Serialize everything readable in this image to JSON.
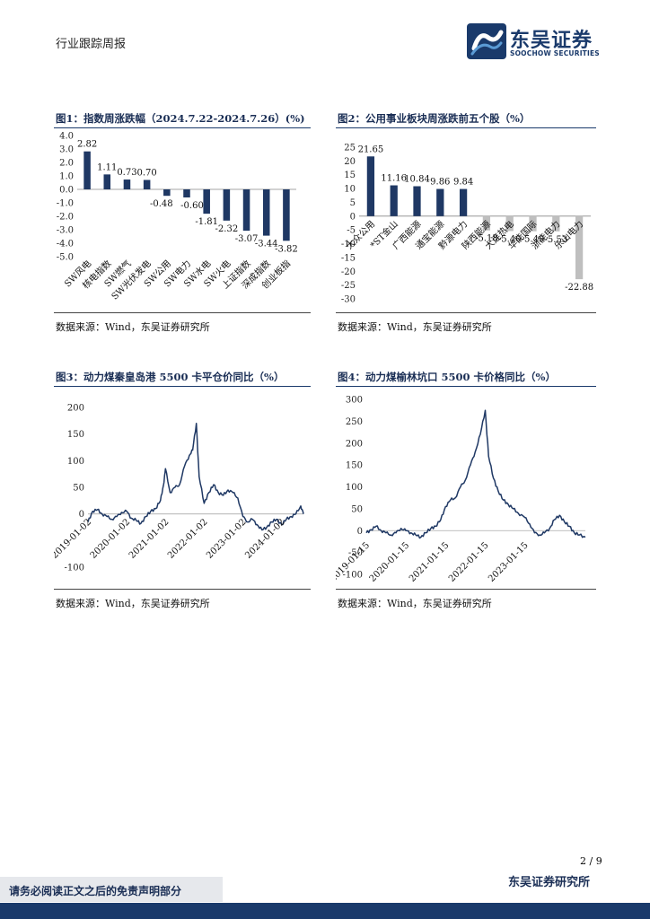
{
  "header": {
    "title": "行业跟踪周报"
  },
  "logo": {
    "cn": "东吴证券",
    "en": "SOOCHOW SECURITIES"
  },
  "figures": [
    {
      "title": "图1：指数周涨跌幅（2024.7.22-2024.7.26）(%)",
      "source": "数据来源：Wind，东吴证券研究所"
    },
    {
      "title": "图2：公用事业板块周涨跌前五个股（%）",
      "source": "数据来源：Wind，东吴证券研究所"
    },
    {
      "title": "图3：动力煤秦皇岛港 5500 卡平仓价同比（%）",
      "source": "数据来源：Wind，东吴证券研究所"
    },
    {
      "title": "图4：动力煤榆林坑口 5500 卡价格同比（%）",
      "source": "数据来源：Wind，东吴证券研究所"
    }
  ],
  "chart_data": [
    {
      "type": "bar",
      "categories": [
        "SW风电",
        "核电指数",
        "SW燃气",
        "SW光伏发电",
        "SW公用",
        "SW电力",
        "SW水电",
        "SW火电",
        "上证指数",
        "深成指数",
        "创业板指"
      ],
      "values": [
        2.82,
        1.11,
        0.73,
        0.7,
        -0.48,
        -0.6,
        -1.81,
        -2.32,
        -3.07,
        -3.44,
        -3.82
      ],
      "value_labels": [
        "2.82",
        "1.11",
        "0.73",
        "0.70",
        "-0.48",
        "-0.60",
        "-1.81",
        "-2.32",
        "-3.07",
        "-3.44",
        "-3.82"
      ],
      "ylim": [
        -5,
        4
      ],
      "yticks": [
        "4.0",
        "3.0",
        "2.0",
        "1.0",
        "0.0",
        "-1.0",
        "-2.0",
        "-3.0",
        "-4.0",
        "-5.0"
      ],
      "colors": [
        "#1f3864",
        "#1f3864",
        "#1f3864",
        "#1f3864",
        "#1f3864",
        "#1f3864",
        "#1f3864",
        "#1f3864",
        "#1f3864",
        "#1f3864",
        "#1f3864"
      ],
      "grid": false
    },
    {
      "type": "bar",
      "categories": [
        "大众公用",
        "*ST金山",
        "广西能源",
        "通宝能源",
        "黔源电力",
        "陕西能源",
        "大连热电",
        "华能国际",
        "浙能电力",
        "乐山电力"
      ],
      "values": [
        21.65,
        11.16,
        10.84,
        9.86,
        9.84,
        -5.18,
        -5.4,
        -5.49,
        -5.53,
        -22.88
      ],
      "value_labels": [
        "21.65",
        "11.16",
        "10.84",
        "9.86",
        "9.84",
        "-5.18",
        "-5.40",
        "-5.49",
        "-5.53",
        "-22.88"
      ],
      "ylim": [
        -30,
        25
      ],
      "yticks": [
        "25",
        "20",
        "15",
        "10",
        "5",
        "0",
        "-5",
        "-10",
        "-15",
        "-20",
        "-25",
        "-30"
      ],
      "colors": [
        "#1f3864",
        "#1f3864",
        "#1f3864",
        "#1f3864",
        "#1f3864",
        "#bfbfbf",
        "#bfbfbf",
        "#bfbfbf",
        "#bfbfbf",
        "#bfbfbf"
      ],
      "grid": false
    },
    {
      "type": "line",
      "x_tick_labels": [
        "2019-01-02",
        "2020-01-02",
        "2021-01-02",
        "2022-01-02",
        "2023-01-02",
        "2024-01-02"
      ],
      "xlim": [
        "2019-01-02",
        "2024-07-26"
      ],
      "ylim": [
        -100,
        200
      ],
      "yticks": [
        "200",
        "150",
        "100",
        "50",
        "0",
        "-100"
      ],
      "color": "#1f3864",
      "grid": false,
      "series": [
        {
          "x": [
            "2019-01-02",
            "2019-02-15",
            "2019-04-01",
            "2019-05-15",
            "2019-07-01",
            "2019-08-15",
            "2019-10-01",
            "2019-11-15",
            "2020-01-02",
            "2020-02-15",
            "2020-04-01",
            "2020-05-15",
            "2020-07-01",
            "2020-08-15",
            "2020-10-01",
            "2020-11-15",
            "2020-12-15",
            "2021-01-02",
            "2021-02-15",
            "2021-04-01",
            "2021-05-15",
            "2021-07-01",
            "2021-08-15",
            "2021-09-15",
            "2021-10-20",
            "2021-11-15",
            "2022-01-02",
            "2022-02-15",
            "2022-04-01",
            "2022-05-15",
            "2022-07-01",
            "2022-08-15",
            "2022-10-01",
            "2022-11-15",
            "2023-01-02",
            "2023-02-15",
            "2023-04-01",
            "2023-05-15",
            "2023-07-01",
            "2023-08-15",
            "2023-10-01",
            "2023-11-15",
            "2024-01-02",
            "2024-02-15",
            "2024-04-01",
            "2024-05-15",
            "2024-07-01",
            "2024-07-26"
          ],
          "y": [
            -15,
            5,
            8,
            0,
            -5,
            -10,
            -5,
            3,
            5,
            -8,
            -12,
            -18,
            -5,
            5,
            10,
            25,
            55,
            85,
            40,
            50,
            55,
            90,
            110,
            120,
            170,
            70,
            20,
            40,
            55,
            40,
            35,
            45,
            40,
            30,
            -5,
            -15,
            -10,
            -20,
            -30,
            -25,
            -15,
            -10,
            -20,
            -10,
            -5,
            0,
            15,
            0
          ]
        }
      ]
    },
    {
      "type": "line",
      "x_tick_labels": [
        "2019-01-15",
        "2020-01-15",
        "2021-01-15",
        "2022-01-15",
        "2023-01-15"
      ],
      "xlim": [
        "2019-01-15",
        "2024-07-26"
      ],
      "ylim": [
        -100,
        300
      ],
      "yticks": [
        "300",
        "250",
        "200",
        "150",
        "100",
        "50",
        "0",
        "-50",
        "-100"
      ],
      "color": "#1f3864",
      "grid": false,
      "series": [
        {
          "x": [
            "2019-01-15",
            "2019-03-01",
            "2019-04-15",
            "2019-06-01",
            "2019-07-15",
            "2019-09-01",
            "2019-10-15",
            "2019-12-01",
            "2020-01-15",
            "2020-03-01",
            "2020-04-15",
            "2020-06-01",
            "2020-07-15",
            "2020-09-01",
            "2020-10-15",
            "2020-12-01",
            "2021-01-15",
            "2021-03-01",
            "2021-04-15",
            "2021-06-01",
            "2021-07-15",
            "2021-09-01",
            "2021-10-15",
            "2021-12-01",
            "2022-01-15",
            "2022-02-15",
            "2022-04-01",
            "2022-05-15",
            "2022-07-01",
            "2022-08-15",
            "2022-10-01",
            "2022-11-15",
            "2023-01-15",
            "2023-03-01",
            "2023-04-15",
            "2023-06-01",
            "2023-07-15",
            "2023-09-01",
            "2023-10-15",
            "2023-12-01",
            "2024-01-15",
            "2024-03-01",
            "2024-04-15",
            "2024-06-01",
            "2024-07-26"
          ],
          "y": [
            -5,
            2,
            10,
            0,
            -5,
            -10,
            -5,
            5,
            0,
            -5,
            -10,
            -15,
            -5,
            5,
            10,
            25,
            55,
            70,
            75,
            100,
            115,
            150,
            180,
            220,
            275,
            170,
            120,
            90,
            70,
            60,
            50,
            40,
            30,
            15,
            -5,
            -10,
            -5,
            5,
            25,
            35,
            20,
            10,
            -5,
            -10,
            -15
          ]
        }
      ]
    }
  ],
  "footer": {
    "disclaimer": "请务必阅读正文之后的免责声明部分",
    "institute": "东吴证券研究所",
    "page": "2  /  9"
  }
}
